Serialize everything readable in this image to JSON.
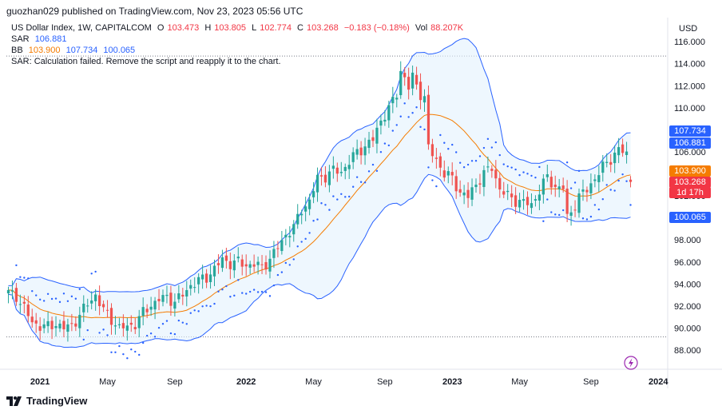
{
  "header": {
    "attribution": "guozhan029 published on TradingView.com, Nov 23, 2023 05:56 UTC"
  },
  "legend": {
    "symbol": "US Dollar Index, 1W, CAPITALCOM",
    "ohlc": {
      "o_label": "O",
      "o": "103.473",
      "h_label": "H",
      "h": "103.805",
      "l_label": "L",
      "l": "102.774",
      "c_label": "C",
      "c": "103.268",
      "change": "−0.183 (−0.18%)",
      "vol_label": "Vol",
      "vol": "88.207K"
    },
    "sar_label": "SAR",
    "sar_value": "106.881",
    "bb_label": "BB",
    "bb_mid": "103.900",
    "bb_upper": "107.734",
    "bb_lower": "100.065",
    "error": "SAR: Calculation failed. Remove the script and reapply it to the chart."
  },
  "price_tags": {
    "upper": "107.734",
    "sar": "106.881",
    "mid": "103.900",
    "close": "103.268",
    "countdown": "1d 17h",
    "lower": "100.065"
  },
  "footer": {
    "brand": "TradingView",
    "logo_icon": "tradingview-logo-icon"
  },
  "colors": {
    "up": "#26a69a",
    "down": "#ef5350",
    "bb_band": "#2962ff",
    "bb_fill": "#e3f2fd",
    "bb_mid": "#f57c00",
    "sar": "#2962ff",
    "grid": "#f0f3fa",
    "axis_text": "#131722"
  },
  "chart_data": {
    "type": "candlestick",
    "currency": "USD",
    "y_ticks": [
      "88.000",
      "90.000",
      "92.000",
      "94.000",
      "96.000",
      "98.000",
      "100.000",
      "102.000",
      "104.000",
      "106.000",
      "108.000",
      "110.000",
      "112.000",
      "114.000",
      "116.000"
    ],
    "ylim": [
      86.5,
      117
    ],
    "x_ticks": [
      {
        "label": "2021",
        "week": 8
      },
      {
        "label": "May",
        "week": 25
      },
      {
        "label": "Sep",
        "week": 42
      },
      {
        "label": "2022",
        "week": 60
      },
      {
        "label": "May",
        "week": 77
      },
      {
        "label": "Sep",
        "week": 95
      },
      {
        "label": "2023",
        "week": 112
      },
      {
        "label": "May",
        "week": 129
      },
      {
        "label": "Sep",
        "week": 147
      },
      {
        "label": "2024",
        "week": 164
      }
    ],
    "dotted_levels": [
      114.7,
      89.2
    ],
    "weeks": 158,
    "key_points": [
      [
        0,
        93.2
      ],
      [
        2,
        92.9
      ],
      [
        4,
        91.8
      ],
      [
        6,
        90.5
      ],
      [
        8,
        90.2
      ],
      [
        10,
        90.1
      ],
      [
        12,
        90.4
      ],
      [
        14,
        90.0
      ],
      [
        16,
        90.2
      ],
      [
        18,
        91.2
      ],
      [
        20,
        92.2
      ],
      [
        22,
        93.0
      ],
      [
        24,
        91.6
      ],
      [
        26,
        90.8
      ],
      [
        28,
        90.0
      ],
      [
        30,
        90.1
      ],
      [
        32,
        90.4
      ],
      [
        34,
        91.4
      ],
      [
        36,
        92.1
      ],
      [
        38,
        92.6
      ],
      [
        40,
        92.8
      ],
      [
        42,
        92.4
      ],
      [
        44,
        93.0
      ],
      [
        46,
        93.9
      ],
      [
        48,
        94.3
      ],
      [
        50,
        94.6
      ],
      [
        52,
        95.4
      ],
      [
        54,
        96.2
      ],
      [
        56,
        95.9
      ],
      [
        58,
        96.0
      ],
      [
        60,
        95.7
      ],
      [
        62,
        95.8
      ],
      [
        64,
        95.5
      ],
      [
        66,
        96.3
      ],
      [
        68,
        97.3
      ],
      [
        70,
        98.5
      ],
      [
        72,
        99.1
      ],
      [
        74,
        100.8
      ],
      [
        76,
        101.5
      ],
      [
        78,
        103.6
      ],
      [
        80,
        103.8
      ],
      [
        82,
        104.3
      ],
      [
        84,
        104.2
      ],
      [
        86,
        105.1
      ],
      [
        88,
        106.0
      ],
      [
        90,
        106.5
      ],
      [
        92,
        107.1
      ],
      [
        94,
        108.9
      ],
      [
        96,
        109.9
      ],
      [
        98,
        111.3
      ],
      [
        99,
        113.4
      ],
      [
        100,
        112.7
      ],
      [
        101,
        111.8
      ],
      [
        102,
        112.8
      ],
      [
        104,
        111.3
      ],
      [
        105,
        110.9
      ],
      [
        106,
        106.3
      ],
      [
        108,
        105.3
      ],
      [
        110,
        104.0
      ],
      [
        112,
        103.6
      ],
      [
        114,
        102.3
      ],
      [
        116,
        101.9
      ],
      [
        118,
        103.1
      ],
      [
        120,
        104.0
      ],
      [
        122,
        104.6
      ],
      [
        124,
        102.6
      ],
      [
        126,
        102.0
      ],
      [
        128,
        101.6
      ],
      [
        130,
        101.4
      ],
      [
        132,
        101.2
      ],
      [
        134,
        102.5
      ],
      [
        136,
        103.7
      ],
      [
        138,
        102.8
      ],
      [
        140,
        102.7
      ],
      [
        141,
        100.0
      ],
      [
        142,
        100.6
      ],
      [
        144,
        101.9
      ],
      [
        146,
        102.6
      ],
      [
        148,
        103.6
      ],
      [
        150,
        104.6
      ],
      [
        152,
        105.4
      ],
      [
        154,
        106.2
      ],
      [
        156,
        105.8
      ],
      [
        157,
        103.268
      ]
    ],
    "last_bar": {
      "open": 103.473,
      "high": 103.805,
      "low": 102.774,
      "close": 103.268
    },
    "indicators": {
      "sar_last": 106.881,
      "bb_mid_last": 103.9,
      "bb_upper_last": 107.734,
      "bb_lower_last": 100.065,
      "bb_period": 20
    },
    "grid": false,
    "legend_position": "top-left"
  }
}
